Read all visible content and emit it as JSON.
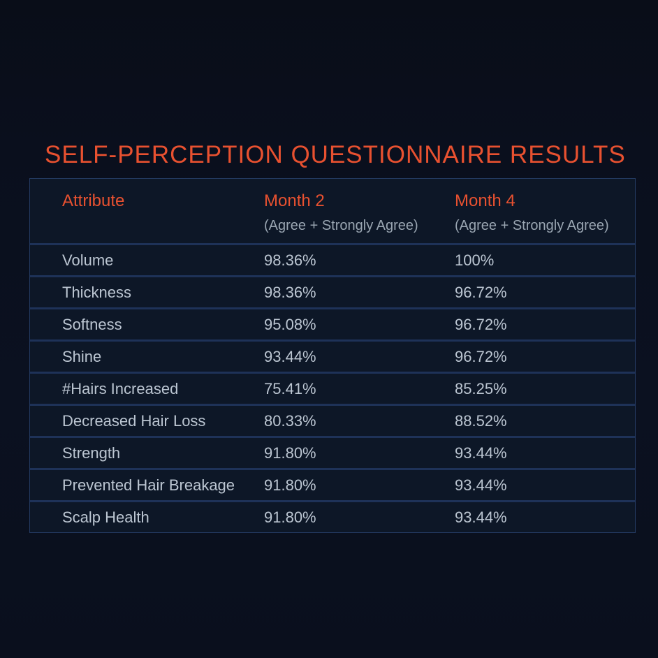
{
  "title": "SELF-PERCEPTION QUESTIONNAIRE RESULTS",
  "table": {
    "columns": [
      {
        "label": "Attribute",
        "sub": ""
      },
      {
        "label": "Month 2",
        "sub": "(Agree + Strongly Agree)"
      },
      {
        "label": "Month 4",
        "sub": "(Agree + Strongly Agree)"
      }
    ],
    "rows": [
      {
        "attribute": "Volume",
        "month2": "98.36%",
        "month4": "100%"
      },
      {
        "attribute": "Thickness",
        "month2": "98.36%",
        "month4": "96.72%"
      },
      {
        "attribute": "Softness",
        "month2": "95.08%",
        "month4": "96.72%"
      },
      {
        "attribute": "Shine",
        "month2": "93.44%",
        "month4": "96.72%"
      },
      {
        "attribute": "#Hairs Increased",
        "month2": "75.41%",
        "month4": "85.25%"
      },
      {
        "attribute": "Decreased Hair Loss",
        "month2": "80.33%",
        "month4": "88.52%"
      },
      {
        "attribute": "Strength",
        "month2": "91.80%",
        "month4": "93.44%"
      },
      {
        "attribute": "Prevented Hair Breakage",
        "month2": "91.80%",
        "month4": "93.44%"
      },
      {
        "attribute": "Scalp Health",
        "month2": "91.80%",
        "month4": "93.44%"
      }
    ]
  },
  "colors": {
    "accent": "#E85130",
    "header_sub_text": "#9AA6B2",
    "body_text": "#BCC6D2",
    "page_background": "#0A0F1D",
    "table_background": "#0D1727",
    "row_divider": "#1E3258",
    "table_border": "#243A62"
  },
  "chart_data": {
    "type": "table",
    "title": "SELF-PERCEPTION QUESTIONNAIRE RESULTS",
    "columns": [
      "Attribute",
      "Month 2 (Agree + Strongly Agree)",
      "Month 4 (Agree + Strongly Agree)"
    ],
    "categories": [
      "Volume",
      "Thickness",
      "Softness",
      "Shine",
      "#Hairs Increased",
      "Decreased Hair Loss",
      "Strength",
      "Prevented Hair Breakage",
      "Scalp Health"
    ],
    "series": [
      {
        "name": "Month 2 (Agree + Strongly Agree)",
        "values": [
          98.36,
          98.36,
          95.08,
          93.44,
          75.41,
          80.33,
          91.8,
          91.8,
          91.8
        ]
      },
      {
        "name": "Month 4 (Agree + Strongly Agree)",
        "values": [
          100,
          96.72,
          96.72,
          96.72,
          85.25,
          88.52,
          93.44,
          93.44,
          93.44
        ]
      }
    ],
    "unit": "%"
  }
}
